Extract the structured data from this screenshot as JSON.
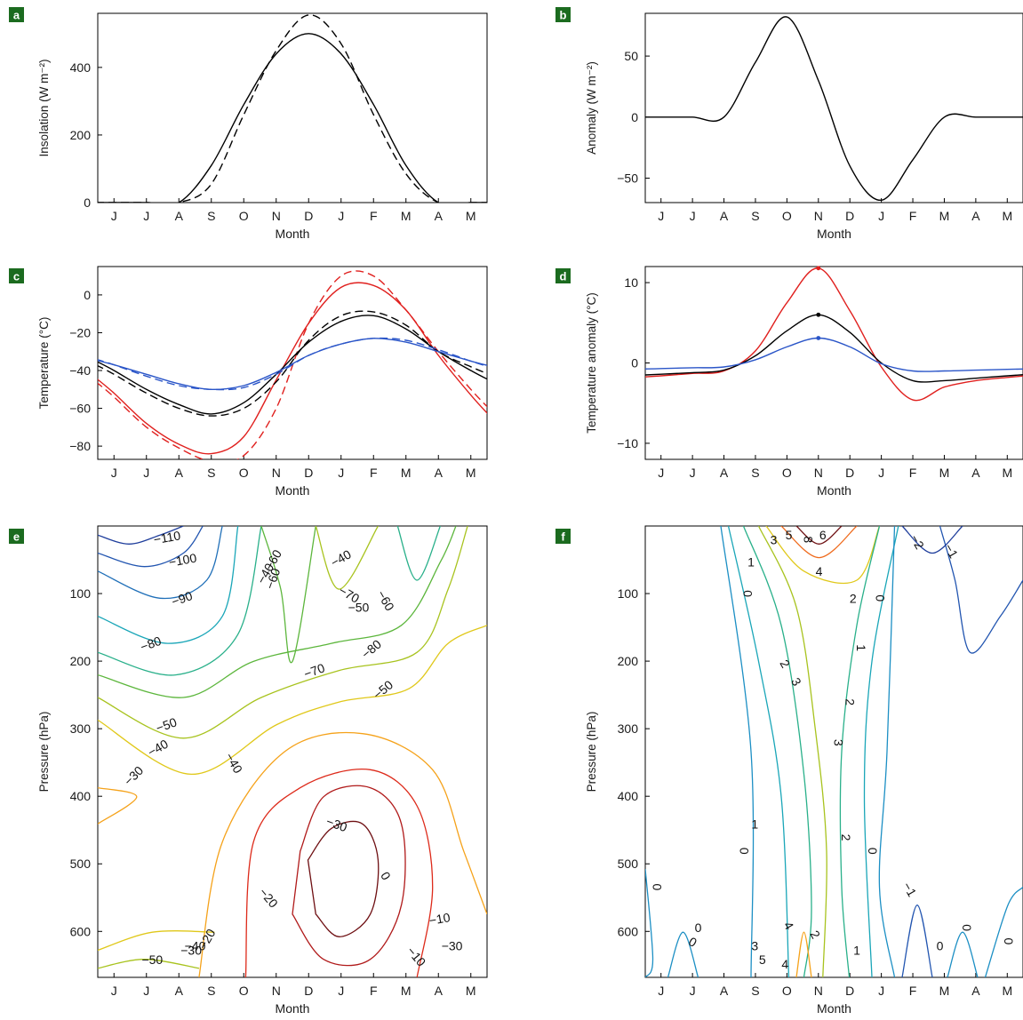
{
  "figure": {
    "month_ticks": [
      "J",
      "J",
      "A",
      "S",
      "O",
      "N",
      "D",
      "J",
      "F",
      "M",
      "A",
      "M"
    ],
    "month_xlabel": "Month"
  },
  "chart_data": [
    {
      "panel": "a",
      "type": "line",
      "xlabel": "Month",
      "ylabel": "Insolation (W m⁻²)",
      "ylim": [
        0,
        560
      ],
      "yticks": [
        "0",
        "200",
        "400"
      ],
      "x": [
        "J",
        "J",
        "A",
        "S",
        "O",
        "N",
        "D",
        "J",
        "F",
        "M",
        "A",
        "M"
      ],
      "series": [
        {
          "style": "solid",
          "color": "#000000",
          "values": [
            0,
            0,
            0,
            110,
            290,
            440,
            500,
            440,
            290,
            110,
            0,
            0
          ]
        },
        {
          "style": "dashed",
          "color": "#000000",
          "values": [
            0,
            0,
            0,
            55,
            260,
            450,
            555,
            470,
            260,
            85,
            0,
            0
          ]
        }
      ]
    },
    {
      "panel": "b",
      "type": "line",
      "xlabel": "Month",
      "ylabel": "Anomaly (W m⁻²)",
      "ylim": [
        -70,
        85
      ],
      "yticks": [
        "−50",
        "0",
        "50"
      ],
      "x": [
        "J",
        "J",
        "A",
        "S",
        "O",
        "N",
        "D",
        "J",
        "F",
        "M",
        "A",
        "M"
      ],
      "series": [
        {
          "style": "solid",
          "color": "#000000",
          "values": [
            0,
            0,
            0,
            45,
            82,
            30,
            -40,
            -68,
            -35,
            0,
            0,
            0
          ]
        }
      ]
    },
    {
      "panel": "c",
      "type": "line",
      "xlabel": "Month",
      "ylabel": "Temperature (°C)",
      "ylim": [
        -87,
        15
      ],
      "yticks": [
        "−80",
        "−60",
        "−40",
        "−20",
        "0"
      ],
      "x": [
        "J",
        "J",
        "A",
        "S",
        "O",
        "N",
        "D",
        "J",
        "F",
        "M",
        "A",
        "M"
      ],
      "series": [
        {
          "style": "solid",
          "color": "#e0201e",
          "values": [
            -52,
            -68,
            -79,
            -84,
            -75,
            -45,
            -15,
            4,
            5,
            -8,
            -32,
            -53
          ]
        },
        {
          "style": "dashed",
          "color": "#e0201e",
          "values": [
            -54,
            -70,
            -81,
            -88,
            -85,
            -60,
            -15,
            10,
            10,
            -8,
            -30,
            -50
          ]
        },
        {
          "style": "solid",
          "color": "#000000",
          "values": [
            -40,
            -50,
            -58,
            -63,
            -57,
            -42,
            -25,
            -14,
            -11,
            -18,
            -30,
            -40
          ]
        },
        {
          "style": "dashed",
          "color": "#000000",
          "values": [
            -42,
            -52,
            -60,
            -64,
            -60,
            -46,
            -24,
            -11,
            -9,
            -16,
            -30,
            -38
          ]
        },
        {
          "style": "solid",
          "color": "#2a55c8",
          "values": [
            -37,
            -42,
            -47,
            -50,
            -48,
            -41,
            -32,
            -26,
            -23,
            -25,
            -30,
            -35
          ]
        },
        {
          "style": "dashed",
          "color": "#2a55c8",
          "values": [
            -37,
            -43,
            -48,
            -50,
            -49,
            -42,
            -32,
            -26,
            -23,
            -24,
            -29,
            -35
          ]
        }
      ]
    },
    {
      "panel": "d",
      "type": "line",
      "xlabel": "Month",
      "ylabel": "Temperature anomaly (°C)",
      "ylim": [
        -12,
        12
      ],
      "yticks": [
        "−10",
        "0",
        "10"
      ],
      "x": [
        "J",
        "J",
        "A",
        "S",
        "O",
        "N",
        "D",
        "J",
        "F",
        "M",
        "A",
        "M"
      ],
      "series": [
        {
          "style": "solid",
          "color": "#e0201e",
          "values": [
            -1.6,
            -1.3,
            -1.0,
            1.5,
            7.5,
            11.8,
            6.5,
            -0.5,
            -4.6,
            -3.0,
            -2.2,
            -1.8
          ]
        },
        {
          "style": "solid",
          "color": "#000000",
          "values": [
            -1.4,
            -1.2,
            -0.9,
            0.9,
            4.0,
            6.0,
            3.8,
            0.0,
            -2.2,
            -2.2,
            -1.9,
            -1.6
          ]
        },
        {
          "style": "solid",
          "color": "#2a55c8",
          "values": [
            -0.7,
            -0.6,
            -0.5,
            0.4,
            2.0,
            3.1,
            2.0,
            -0.1,
            -1.0,
            -1.0,
            -0.9,
            -0.8
          ]
        }
      ],
      "markers": [
        {
          "series": 0,
          "x": "N",
          "value": 11.8
        },
        {
          "series": 1,
          "x": "N",
          "value": 6.0
        },
        {
          "series": 2,
          "x": "N",
          "value": 3.1
        }
      ]
    },
    {
      "panel": "e",
      "type": "contour",
      "xlabel": "Month",
      "ylabel": "Pressure (hPa)",
      "ylim": [
        0,
        668
      ],
      "yticks": [
        "100",
        "200",
        "300",
        "400",
        "500",
        "600"
      ],
      "x": [
        "J",
        "J",
        "A",
        "S",
        "O",
        "N",
        "D",
        "J",
        "F",
        "M",
        "A",
        "M"
      ],
      "contour_levels": [
        -110,
        -100,
        -90,
        -80,
        -70,
        -60,
        -50,
        -40,
        -30,
        -20,
        -10,
        0
      ],
      "labels": [
        "−110",
        "−100",
        "−90",
        "−80",
        "−60",
        "−50",
        "−40",
        "−30",
        "−60",
        "−70",
        "−40",
        "−50",
        "−60",
        "−70",
        "−80",
        "−40",
        "−50",
        "−30",
        "−10",
        "−20",
        "0",
        "−20",
        "−30",
        "−10",
        "−30",
        "−40",
        "−40",
        "−50"
      ]
    },
    {
      "panel": "f",
      "type": "contour",
      "xlabel": "Month",
      "ylabel": "Pressure (hPa)",
      "ylim": [
        0,
        668
      ],
      "yticks": [
        "100",
        "200",
        "300",
        "400",
        "500",
        "600"
      ],
      "x": [
        "J",
        "J",
        "A",
        "S",
        "O",
        "N",
        "D",
        "J",
        "F",
        "M",
        "A",
        "M"
      ],
      "contour_levels": [
        -2,
        -1,
        0,
        1,
        2,
        3,
        4,
        5,
        6,
        7,
        8
      ],
      "labels": [
        "3",
        "5",
        "8",
        "6",
        "1",
        "4",
        "2",
        "0",
        "−2",
        "−1",
        "0",
        "2",
        "3",
        "1",
        "2",
        "3",
        "1",
        "0",
        "2",
        "0",
        "0",
        "−1",
        "0",
        "4",
        "2",
        "3",
        "5",
        "4",
        "1",
        "0",
        "0",
        "0",
        "0"
      ]
    }
  ]
}
